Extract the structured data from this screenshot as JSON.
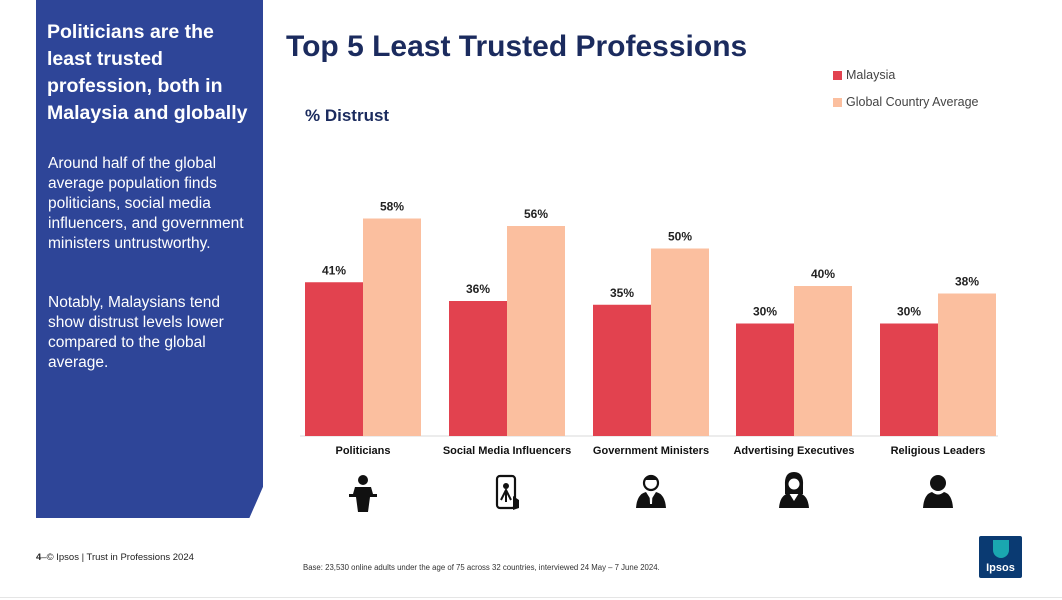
{
  "sidebar": {
    "heading": "Politicians are the least trusted profession, both in Malaysia and globally",
    "para1": "Around half of the global average population finds politicians, social media influencers, and government ministers untrustworthy.",
    "para2": "Notably, Malaysians tend show distrust levels lower compared to the global average."
  },
  "footer": {
    "page_number": "4",
    "source": "© Ipsos | Trust in Professions 2024",
    "base_note": "Base: 23,530 online adults under the age of 75 across 32 countries, interviewed 24 May – 7 June 2024."
  },
  "logo": {
    "text": "Ipsos"
  },
  "colors": {
    "sidebar_bg": "#2e4598",
    "title": "#1b2b5e",
    "malaysia": "#e2424f",
    "global": "#fbbf9f"
  },
  "icons": [
    "politician-podium-icon",
    "influencer-phone-icon",
    "minister-icon",
    "executive-icon",
    "religious-leader-icon"
  ],
  "chart_data": {
    "type": "bar",
    "title": "Top 5 Least Trusted Professions",
    "ylabel": "% Distrust",
    "categories": [
      "Politicians",
      "Social Media Influencers",
      "Government Ministers",
      "Advertising Executives",
      "Religious Leaders"
    ],
    "series": [
      {
        "name": "Malaysia",
        "color": "#e2424f",
        "values": [
          41,
          36,
          35,
          30,
          30
        ],
        "labels": [
          "41%",
          "36%",
          "35%",
          "30%",
          "30%"
        ]
      },
      {
        "name": "Global Country Average",
        "color": "#fbbf9f",
        "values": [
          58,
          56,
          50,
          40,
          38
        ],
        "labels": [
          "58%",
          "56%",
          "50%",
          "40%",
          "38%"
        ]
      }
    ],
    "ylim": [
      0,
      100
    ],
    "legend_position": "top-right",
    "grid": false
  }
}
